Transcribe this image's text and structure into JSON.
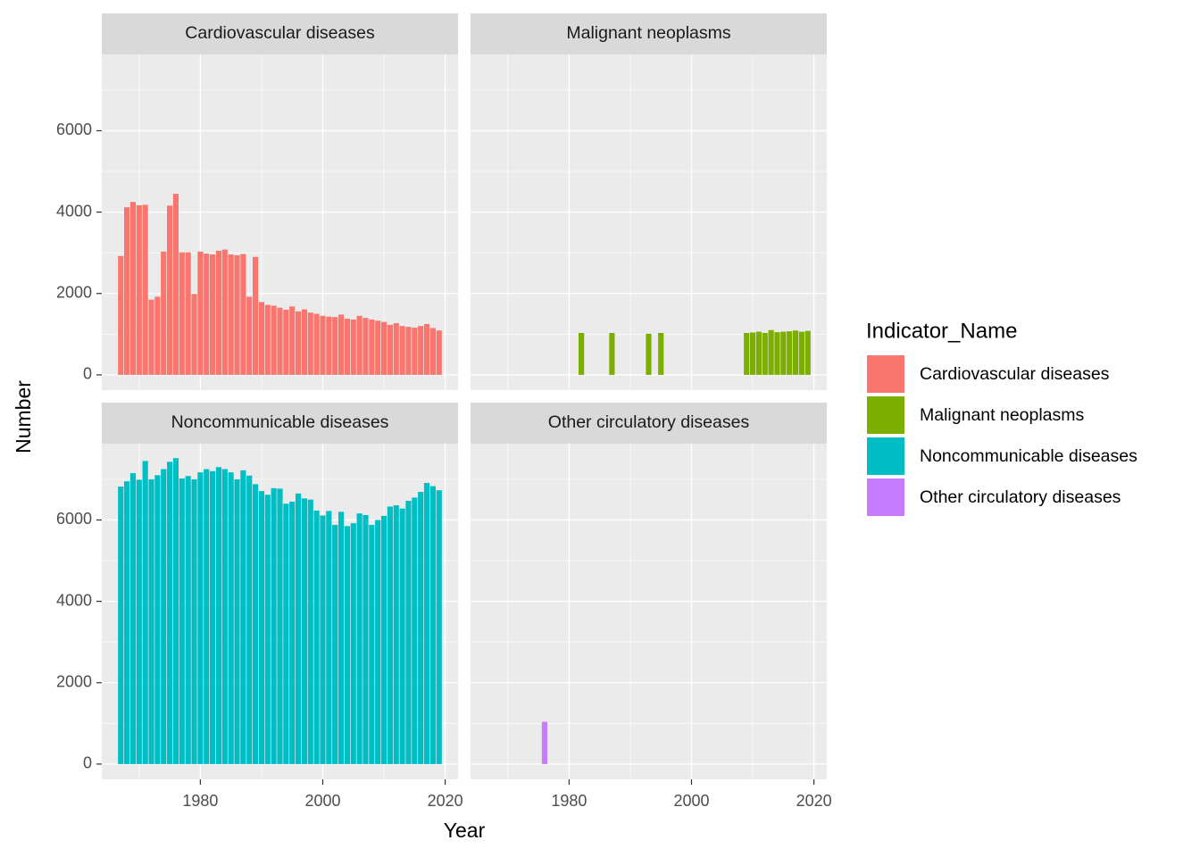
{
  "chart_data": {
    "type": "bar",
    "x_label": "Year",
    "y_label": "Number",
    "legend_title": "Indicator_Name",
    "facet_ncol": 2,
    "grid": true,
    "xlim": [
      1963.9,
      2022.1
    ],
    "xticks": [
      1980,
      2000,
      2020
    ],
    "ylim": [
      -375,
      7875
    ],
    "yticks": [
      0,
      2000,
      4000,
      6000
    ],
    "series": [
      {
        "name": "Cardiovascular diseases",
        "color": "#f8766d",
        "x": [
          1967,
          1968,
          1969,
          1970,
          1971,
          1972,
          1973,
          1974,
          1975,
          1976,
          1977,
          1978,
          1979,
          1980,
          1981,
          1982,
          1983,
          1984,
          1985,
          1986,
          1987,
          1988,
          1989,
          1990,
          1991,
          1992,
          1993,
          1994,
          1995,
          1996,
          1997,
          1998,
          1999,
          2000,
          2001,
          2002,
          2003,
          2004,
          2005,
          2006,
          2007,
          2008,
          2009,
          2010,
          2011,
          2012,
          2013,
          2014,
          2015,
          2016,
          2017,
          2018,
          2019
        ],
        "values": [
          2920,
          4120,
          4250,
          4170,
          4180,
          1850,
          1920,
          3030,
          4160,
          4450,
          3010,
          3010,
          1990,
          3030,
          2980,
          2960,
          3050,
          3080,
          2960,
          2940,
          2970,
          1920,
          2900,
          1790,
          1720,
          1700,
          1650,
          1600,
          1680,
          1560,
          1610,
          1530,
          1500,
          1450,
          1430,
          1420,
          1480,
          1380,
          1360,
          1450,
          1400,
          1360,
          1330,
          1300,
          1230,
          1270,
          1200,
          1180,
          1160,
          1200,
          1250,
          1150,
          1090
        ]
      },
      {
        "name": "Malignant neoplasms",
        "color": "#7cae00",
        "x": [
          1982,
          1987,
          1993,
          1995,
          2009,
          2010,
          2011,
          2012,
          2013,
          2014,
          2015,
          2016,
          2017,
          2018,
          2019
        ],
        "values": [
          1030,
          1030,
          1010,
          1030,
          1030,
          1040,
          1060,
          1030,
          1100,
          1050,
          1060,
          1070,
          1090,
          1060,
          1080
        ]
      },
      {
        "name": "Noncommunicable diseases",
        "color": "#00bfc4",
        "x": [
          1967,
          1968,
          1969,
          1970,
          1971,
          1972,
          1973,
          1974,
          1975,
          1976,
          1977,
          1978,
          1979,
          1980,
          1981,
          1982,
          1983,
          1984,
          1985,
          1986,
          1987,
          1988,
          1989,
          1990,
          1991,
          1992,
          1993,
          1994,
          1995,
          1996,
          1997,
          1998,
          1999,
          2000,
          2001,
          2002,
          2003,
          2004,
          2005,
          2006,
          2007,
          2008,
          2009,
          2010,
          2011,
          2012,
          2013,
          2014,
          2015,
          2016,
          2017,
          2018,
          2019
        ],
        "values": [
          6820,
          6950,
          7150,
          6990,
          7450,
          7000,
          7100,
          7250,
          7430,
          7520,
          7020,
          7080,
          7000,
          7170,
          7250,
          7200,
          7300,
          7250,
          7170,
          7000,
          7220,
          7090,
          6880,
          6710,
          6620,
          6780,
          6770,
          6400,
          6450,
          6650,
          6530,
          6500,
          6230,
          6110,
          6220,
          5880,
          6200,
          5850,
          5920,
          6160,
          6120,
          5880,
          6000,
          6100,
          6330,
          6360,
          6280,
          6470,
          6550,
          6690,
          6910,
          6830,
          6730
        ]
      },
      {
        "name": "Other circulatory diseases",
        "color": "#c77cff",
        "x": [
          1976
        ],
        "values": [
          1040
        ]
      }
    ]
  }
}
